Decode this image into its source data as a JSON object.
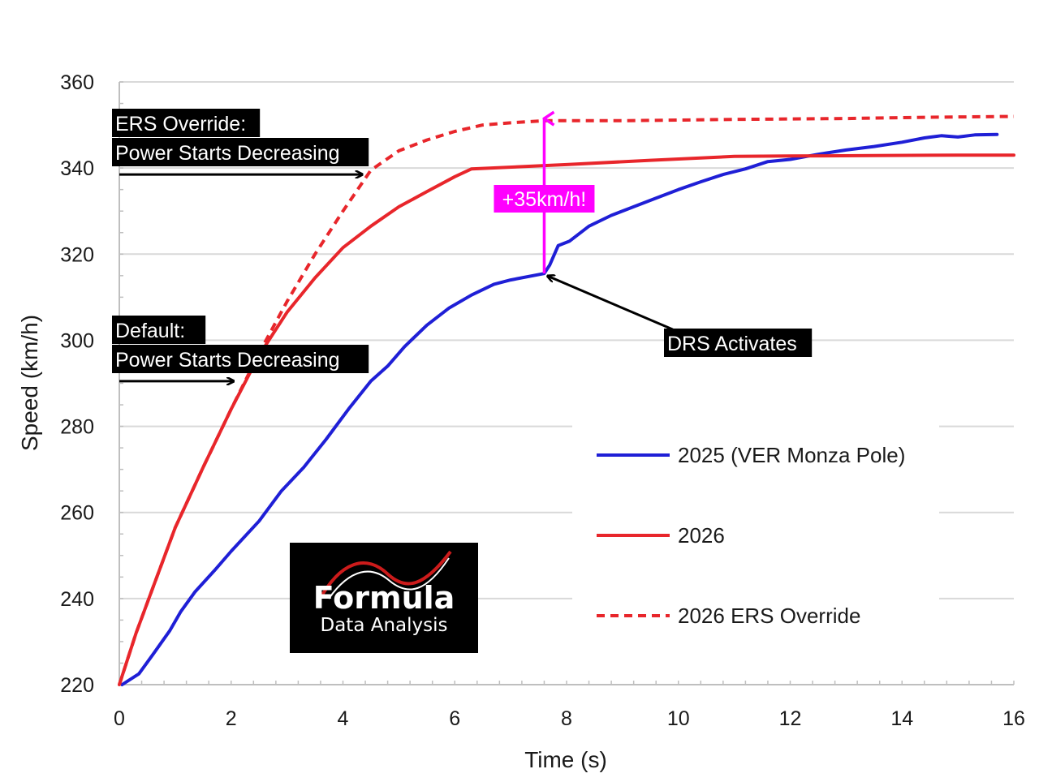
{
  "chart_data": {
    "type": "line",
    "xlabel": "Time (s)",
    "ylabel": "Speed (km/h)",
    "xlim": [
      0,
      16
    ],
    "ylim": [
      220,
      360
    ],
    "xticks": [
      "0",
      "2",
      "4",
      "6",
      "8",
      "10",
      "12",
      "14",
      "16"
    ],
    "yticks": [
      "220",
      "240",
      "260",
      "280",
      "300",
      "320",
      "340",
      "360"
    ],
    "grid": "horizontal",
    "legend_position": "bottom-right",
    "series": [
      {
        "name": "2025 (VER Monza Pole)",
        "color": "#1f1fd6",
        "style": "solid",
        "points": [
          [
            0.05,
            220
          ],
          [
            0.35,
            222.5
          ],
          [
            0.6,
            227
          ],
          [
            0.9,
            232.5
          ],
          [
            1.1,
            237
          ],
          [
            1.35,
            241.5
          ],
          [
            1.7,
            246.5
          ],
          [
            2.0,
            251
          ],
          [
            2.5,
            258
          ],
          [
            2.9,
            265
          ],
          [
            3.3,
            270.5
          ],
          [
            3.7,
            277
          ],
          [
            4.1,
            284
          ],
          [
            4.5,
            290.5
          ],
          [
            4.8,
            294
          ],
          [
            5.1,
            298.5
          ],
          [
            5.5,
            303.5
          ],
          [
            5.9,
            307.5
          ],
          [
            6.3,
            310.5
          ],
          [
            6.7,
            313
          ],
          [
            7.0,
            314
          ],
          [
            7.6,
            315.5
          ],
          [
            7.7,
            317.5
          ],
          [
            7.85,
            322
          ],
          [
            8.05,
            323
          ],
          [
            8.4,
            326.5
          ],
          [
            8.8,
            329
          ],
          [
            9.2,
            331
          ],
          [
            9.6,
            333
          ],
          [
            10.0,
            335
          ],
          [
            10.4,
            336.8
          ],
          [
            10.8,
            338.5
          ],
          [
            11.2,
            339.8
          ],
          [
            11.6,
            341.5
          ],
          [
            12.0,
            342
          ],
          [
            12.5,
            343.2
          ],
          [
            13.0,
            344.2
          ],
          [
            13.5,
            345
          ],
          [
            14.0,
            346
          ],
          [
            14.4,
            347
          ],
          [
            14.7,
            347.5
          ],
          [
            15.0,
            347.2
          ],
          [
            15.3,
            347.7
          ],
          [
            15.7,
            347.8
          ]
        ]
      },
      {
        "name": "2026",
        "color": "#e8262b",
        "style": "solid",
        "points": [
          [
            0,
            220
          ],
          [
            0.3,
            232
          ],
          [
            0.6,
            242.5
          ],
          [
            1.0,
            256.5
          ],
          [
            1.5,
            270.5
          ],
          [
            2.0,
            284
          ],
          [
            2.5,
            296.5
          ],
          [
            3.0,
            306.5
          ],
          [
            3.5,
            314.5
          ],
          [
            4.0,
            321.5
          ],
          [
            4.5,
            326.5
          ],
          [
            5.0,
            331
          ],
          [
            5.5,
            334.5
          ],
          [
            6.0,
            338
          ],
          [
            6.3,
            339.8
          ],
          [
            8.0,
            340.8
          ],
          [
            9.5,
            341.8
          ],
          [
            11.0,
            342.7
          ],
          [
            12.0,
            342.8
          ],
          [
            13.5,
            342.9
          ],
          [
            15.0,
            343
          ],
          [
            16.0,
            343
          ]
        ]
      },
      {
        "name": "2026 ERS Override",
        "color": "#e8262b",
        "style": "dashed",
        "points": [
          [
            0,
            220
          ],
          [
            0.3,
            232
          ],
          [
            0.6,
            242.5
          ],
          [
            1.0,
            256.5
          ],
          [
            1.5,
            270.5
          ],
          [
            2.0,
            284
          ],
          [
            2.5,
            297
          ],
          [
            3.0,
            309
          ],
          [
            3.5,
            320
          ],
          [
            4.0,
            330
          ],
          [
            4.5,
            339.5
          ],
          [
            5.0,
            344
          ],
          [
            5.5,
            346.5
          ],
          [
            6.0,
            348.5
          ],
          [
            6.5,
            350
          ],
          [
            7.0,
            350.5
          ],
          [
            7.6,
            351
          ],
          [
            9.0,
            351
          ],
          [
            11.0,
            351.3
          ],
          [
            13.0,
            351.5
          ],
          [
            14.5,
            351.8
          ],
          [
            16.0,
            352
          ]
        ]
      }
    ],
    "annotations": [
      {
        "lines": [
          "ERS Override:",
          "Power Starts Decreasing"
        ],
        "arrow_from": [
          0,
          338.5
        ],
        "arrow_to": [
          4.35,
          338.5
        ]
      },
      {
        "lines": [
          "Default:",
          "Power Starts Decreasing"
        ],
        "arrow_from": [
          0,
          290.5
        ],
        "arrow_to": [
          2.05,
          290.5
        ]
      },
      {
        "lines": [
          "DRS Activates"
        ],
        "arrow_from": [
          9.9,
          302.5
        ],
        "arrow_to": [
          7.6,
          315.5
        ]
      },
      {
        "lines": [
          "+35km/h!"
        ],
        "color": "#ff00ff",
        "arrow_from": [
          7.6,
          315.5
        ],
        "arrow_to": [
          7.6,
          351.5
        ]
      }
    ],
    "logo": {
      "line1": "Formula",
      "line2": "Data Analysis"
    }
  }
}
